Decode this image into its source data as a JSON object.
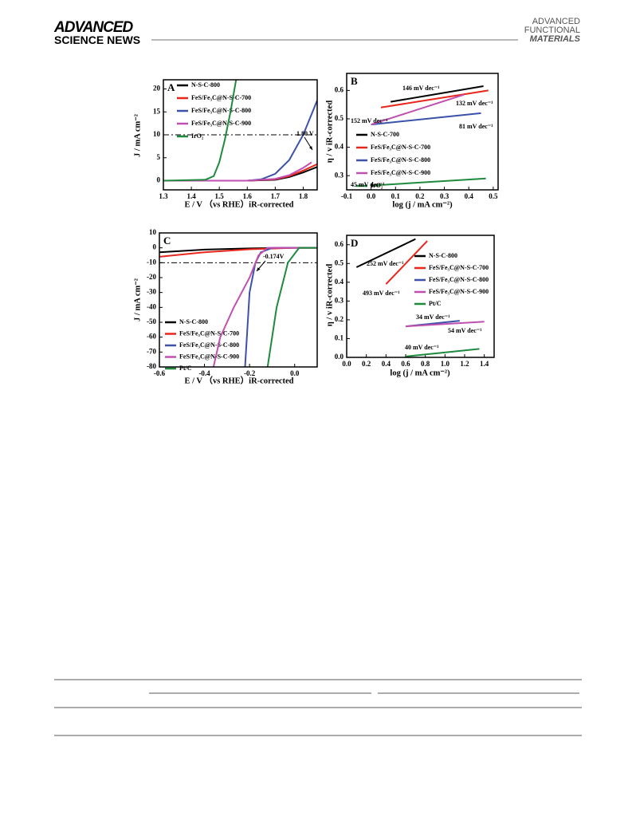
{
  "header": {
    "left": [
      "ADVANCED",
      "SCIENCE NEWS"
    ],
    "right": [
      "ADVANCED",
      "FUNCTIONAL",
      "MATERIALS"
    ]
  },
  "chart_data": [
    {
      "type": "line",
      "label": "A",
      "xlabel": "E / V （vs RHE）iR-corrected",
      "ylabel": "J / mA cm⁻²",
      "xlim": [
        1.3,
        1.85
      ],
      "xticks": [
        1.3,
        1.4,
        1.5,
        1.6,
        1.7,
        1.8
      ],
      "ylim": [
        -2,
        22
      ],
      "yticks": [
        0,
        5,
        10,
        15,
        20
      ],
      "legend": "upper left",
      "reference_line": 10,
      "annotations": [
        "1.80 V"
      ],
      "series": [
        {
          "name": "N-S-C-800",
          "color": "#000000",
          "x": [
            1.3,
            1.6,
            1.7,
            1.75,
            1.8,
            1.85
          ],
          "values": [
            0,
            0,
            0.2,
            0.8,
            1.8,
            3
          ]
        },
        {
          "name": "FeS/Fe₃C@N-S-C-700",
          "color": "#e8261c",
          "x": [
            1.3,
            1.6,
            1.7,
            1.75,
            1.8,
            1.85
          ],
          "values": [
            0,
            0,
            0.3,
            1,
            2.2,
            3.6
          ]
        },
        {
          "name": "FeS/Fe₃C@N-S-C-800",
          "color": "#3a52a8",
          "x": [
            1.3,
            1.6,
            1.65,
            1.7,
            1.75,
            1.8,
            1.85
          ],
          "values": [
            0,
            0,
            0.3,
            1.5,
            4.5,
            10,
            17.5
          ]
        },
        {
          "name": "FeS/Fe₃C@N-S-C-900",
          "color": "#c050b0",
          "x": [
            1.3,
            1.6,
            1.7,
            1.75,
            1.8,
            1.83
          ],
          "values": [
            0,
            0,
            0.4,
            1.2,
            2.8,
            4
          ]
        },
        {
          "name": "IrO₂",
          "color": "#1f8a3e",
          "x": [
            1.3,
            1.45,
            1.48,
            1.5,
            1.52,
            1.54,
            1.56
          ],
          "values": [
            0,
            0.2,
            1,
            4,
            9,
            15,
            22
          ]
        }
      ]
    },
    {
      "type": "line",
      "label": "B",
      "xlabel": "log (j / mA cm⁻²)",
      "ylabel": "η / v iR-corrected",
      "xlim": [
        -0.1,
        0.52
      ],
      "xticks": [
        -0.1,
        {
          "value": 0,
          "label": "0.0"
        },
        0.1,
        0.2,
        0.3,
        0.4,
        0.5
      ],
      "ylim": [
        0.25,
        0.66
      ],
      "yticks": [
        0.3,
        0.4,
        0.5,
        0.6
      ],
      "legend": "center right",
      "annotations": [
        "146 mV dec⁻¹",
        "132 mV dec⁻¹",
        "152 mV dec⁻¹",
        "81 mV dec⁻¹",
        "45 mV dec⁻¹"
      ],
      "series": [
        {
          "name": "N-S-C-700",
          "color": "#000000",
          "x": [
            0.08,
            0.46
          ],
          "values": [
            0.56,
            0.615
          ]
        },
        {
          "name": "FeS/Fe₃C@N-S-C-700",
          "color": "#e8261c",
          "x": [
            0.04,
            0.48
          ],
          "values": [
            0.54,
            0.6
          ]
        },
        {
          "name": "FeS/Fe₃C@N-S-C-800",
          "color": "#3a52a8",
          "x": [
            0,
            0.45
          ],
          "values": [
            0.48,
            0.52
          ]
        },
        {
          "name": "FeS/Fe₃C@N-S-C-900",
          "color": "#c050b0",
          "x": [
            0,
            0.38
          ],
          "values": [
            0.48,
            0.585
          ]
        },
        {
          "name": "IrO₂",
          "color": "#1f8a3e",
          "x": [
            0,
            0.47
          ],
          "values": [
            0.265,
            0.29
          ]
        }
      ]
    },
    {
      "type": "line",
      "label": "C",
      "xlabel": "E / V （vs RHE）iR-corrected",
      "ylabel": "J / mA cm⁻²",
      "xlim": [
        -0.6,
        0.1
      ],
      "xticks": [
        -0.6,
        -0.4,
        -0.2,
        {
          "value": 0,
          "label": "0.0"
        }
      ],
      "ylim": [
        -80,
        10
      ],
      "yticks": [
        -80,
        -70,
        -60,
        -50,
        -40,
        -30,
        -20,
        -10,
        0,
        10
      ],
      "legend": "lower left",
      "reference_line": -10,
      "annotations": [
        "-0.174V"
      ],
      "series": [
        {
          "name": "N-S-C-800",
          "color": "#000000",
          "x": [
            -0.6,
            -0.4,
            -0.2,
            0,
            0.1
          ],
          "values": [
            -3,
            -1.2,
            -0.4,
            0,
            0
          ]
        },
        {
          "name": "FeS/Fe₃C@N-S-C-700",
          "color": "#e8261c",
          "x": [
            -0.6,
            -0.4,
            -0.2,
            0,
            0.1
          ],
          "values": [
            -6,
            -3,
            -1,
            0,
            0
          ]
        },
        {
          "name": "FeS/Fe₃C@N-S-C-800",
          "color": "#3a52a8",
          "x": [
            0.1,
            -0.1,
            -0.15,
            -0.174,
            -0.2,
            -0.22
          ],
          "values": [
            0,
            0,
            -3,
            -10,
            -30,
            -80
          ]
        },
        {
          "name": "FeS/Fe₃C@N-S-C-900",
          "color": "#c050b0",
          "x": [
            0.1,
            -0.12,
            -0.16,
            -0.2,
            -0.27,
            -0.33,
            -0.36
          ],
          "values": [
            0,
            0,
            -5,
            -20,
            -40,
            -60,
            -80
          ]
        },
        {
          "name": "Pt/C",
          "color": "#1f8a3e",
          "x": [
            0.1,
            0.02,
            -0.03,
            -0.08,
            -0.12
          ],
          "values": [
            0,
            0,
            -10,
            -40,
            -80
          ]
        }
      ]
    },
    {
      "type": "line",
      "label": "D",
      "xlabel": "log (j / mA cm⁻²)",
      "ylabel": "η / v iR-corrected",
      "xlim": [
        0,
        1.5
      ],
      "xticks": [
        {
          "value": 0,
          "label": "0.0"
        },
        0.2,
        0.4,
        0.6,
        0.8,
        {
          "value": 1,
          "label": "1.0"
        },
        1.2,
        1.4
      ],
      "ylim": [
        0,
        0.65
      ],
      "yticks": [
        {
          "value": 0,
          "label": "0.0"
        },
        0.1,
        0.2,
        0.3,
        0.4,
        0.5,
        0.6
      ],
      "legend": "upper right",
      "annotations": [
        "252 mV dec⁻¹",
        "493 mV dec⁻¹",
        "34 mV dec⁻¹",
        "54 mV dec⁻¹",
        "40 mV dec⁻¹"
      ],
      "series": [
        {
          "name": "N-S-C-800",
          "color": "#000000",
          "x": [
            0.1,
            0.7
          ],
          "values": [
            0.48,
            0.63
          ]
        },
        {
          "name": "FeS/Fe₃C@N-S-C-700",
          "color": "#e8261c",
          "x": [
            0.4,
            0.82
          ],
          "values": [
            0.39,
            0.62
          ]
        },
        {
          "name": "FeS/Fe₃C@N-S-C-800",
          "color": "#3a52a8",
          "x": [
            0.6,
            1.15
          ],
          "values": [
            0.165,
            0.195
          ]
        },
        {
          "name": "FeS/Fe₃C@N-S-C-900",
          "color": "#c050b0",
          "x": [
            0.6,
            1.4
          ],
          "values": [
            0.165,
            0.19
          ]
        },
        {
          "name": "Pt/C",
          "color": "#1f8a3e",
          "x": [
            0.6,
            1.35
          ],
          "values": [
            0.005,
            0.045
          ]
        }
      ]
    }
  ]
}
